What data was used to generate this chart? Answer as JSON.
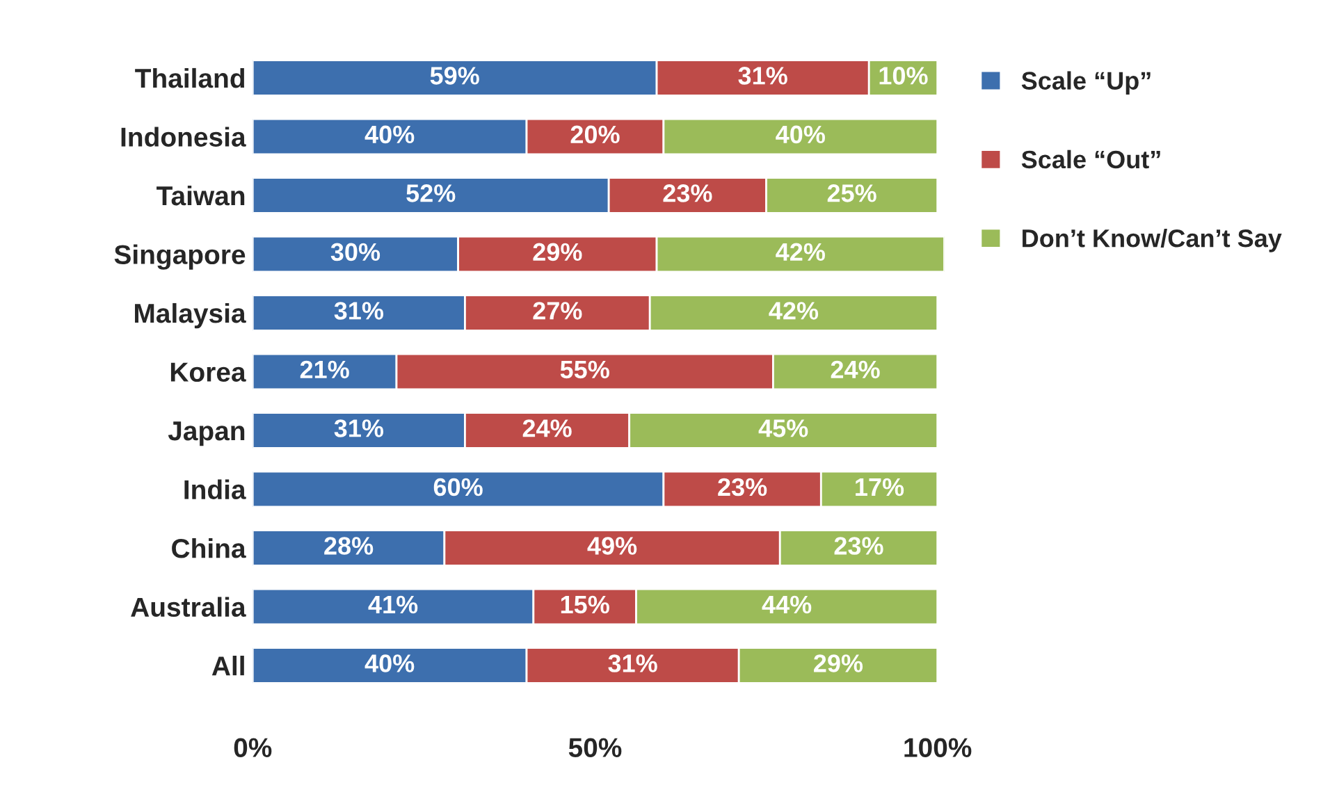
{
  "chart_data": {
    "type": "bar",
    "orientation": "horizontal",
    "stacked": true,
    "categories": [
      "Thailand",
      "Indonesia",
      "Taiwan",
      "Singapore",
      "Malaysia",
      "Korea",
      "Japan",
      "India",
      "China",
      "Australia",
      "All"
    ],
    "series": [
      {
        "name": "Scale “Up”",
        "color": "#3d6fae",
        "values": [
          59,
          40,
          52,
          30,
          31,
          21,
          31,
          60,
          28,
          41,
          40
        ],
        "value_labels": [
          "59%",
          "40%",
          "52%",
          "30%",
          "31%",
          "21%",
          "31%",
          "60%",
          "28%",
          "41%",
          "40%"
        ]
      },
      {
        "name": "Scale “Out”",
        "color": "#be4b48",
        "values": [
          31,
          20,
          23,
          29,
          27,
          55,
          24,
          23,
          49,
          15,
          31
        ],
        "value_labels": [
          "31%",
          "20%",
          "23%",
          "29%",
          "27%",
          "55%",
          "24%",
          "23%",
          "49%",
          "15%",
          "31%"
        ]
      },
      {
        "name": "Don’t Know/Can’t Say",
        "color": "#9bbb59",
        "values": [
          10,
          40,
          25,
          42,
          42,
          24,
          45,
          17,
          23,
          44,
          29
        ],
        "value_labels": [
          "10%",
          "40%",
          "25%",
          "42%",
          "42%",
          "24%",
          "45%",
          "17%",
          "23%",
          "44%",
          "29%"
        ]
      }
    ],
    "xlim": [
      0,
      101
    ],
    "xticks": [
      {
        "value": 0,
        "label": "0%"
      },
      {
        "value": 50,
        "label": "50%"
      },
      {
        "value": 100,
        "label": "100%"
      }
    ],
    "legend": "right",
    "grid": false
  }
}
